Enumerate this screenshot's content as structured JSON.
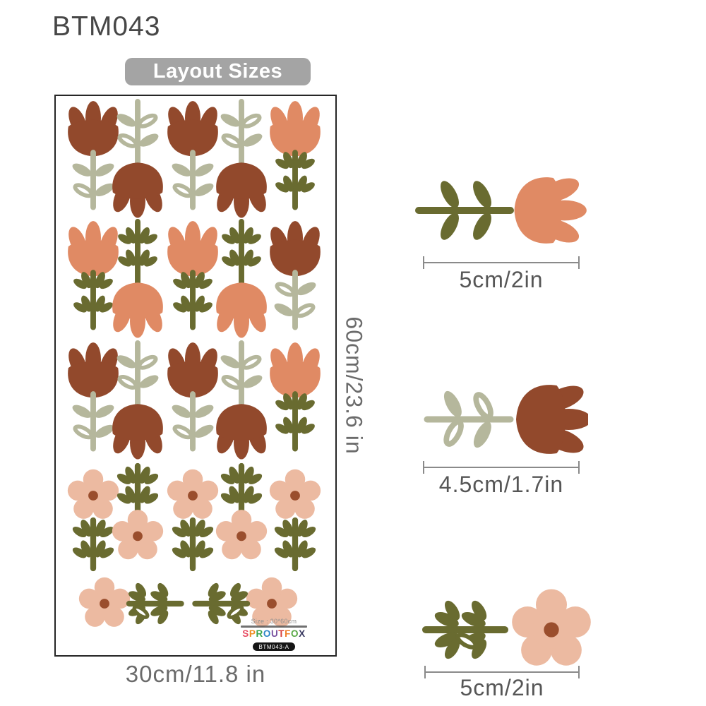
{
  "page": {
    "title": "BTM043",
    "badge": "Layout Sizes"
  },
  "sheet": {
    "height_label": "60cm/23.6 in",
    "width_label": "30cm/11.8 in",
    "grid_rows": [
      "rust-tulip-up | sage-stem-rust-bell-down | rust-tulip-up | sage-stem-rust-bell-down | coral-tulip-up-olive-stem",
      "coral-tulip-up-olive-stem | olive-stem-coral-bell-down | coral-tulip-up-olive-stem | olive-stem-coral-bell-down | rust-tulip-up-sage-loop-stem",
      "rust-tulip-up | sage-stem-rust-bell-down | rust-tulip-up | sage-stem-rust-bell-down | coral-tulip-up-olive-stem",
      "pink-daisy-over-olive-stem | olive-stem-over-pink-daisy | pink-daisy-over-olive-stem | olive-stem-over-pink-daisy | pink-daisy-over-olive-stem",
      "horizontal-daisy-sprig-left | horizontal-daisy-sprig-right"
    ],
    "footer": {
      "size_note": "Size : 30*60cm",
      "brand_letters": [
        {
          "ch": "S",
          "color": "#e74c63"
        },
        {
          "ch": "P",
          "color": "#f08c1f"
        },
        {
          "ch": "R",
          "color": "#3ba54e"
        },
        {
          "ch": "O",
          "color": "#2e86c8"
        },
        {
          "ch": "U",
          "color": "#7a52a0"
        },
        {
          "ch": "T",
          "color": "#d8413c"
        },
        {
          "ch": "F",
          "color": "#ef7f27"
        },
        {
          "ch": "O",
          "color": "#57a744"
        },
        {
          "ch": "X",
          "color": "#3b3b62"
        }
      ],
      "sku": "BTM043-A"
    }
  },
  "details": [
    {
      "name": "coral-tulip-horizontal",
      "label": "5cm/2in"
    },
    {
      "name": "rust-tulip-horizontal",
      "label": "4.5cm/1.7in"
    },
    {
      "name": "pink-daisy-horizontal",
      "label": "5cm/2in"
    }
  ],
  "palette": {
    "rust": "#92492c",
    "coral": "#e08a64",
    "pink": "#ecbaa1",
    "dot": "#9a4e2d",
    "olive": "#696b30",
    "sage": "#b5b79c",
    "text_dark": "#474747",
    "text_gray": "#6b6b6b",
    "badge_bg": "#a4a4a4",
    "line_gray": "#8a8a8a",
    "sheet_border": "#262626"
  }
}
